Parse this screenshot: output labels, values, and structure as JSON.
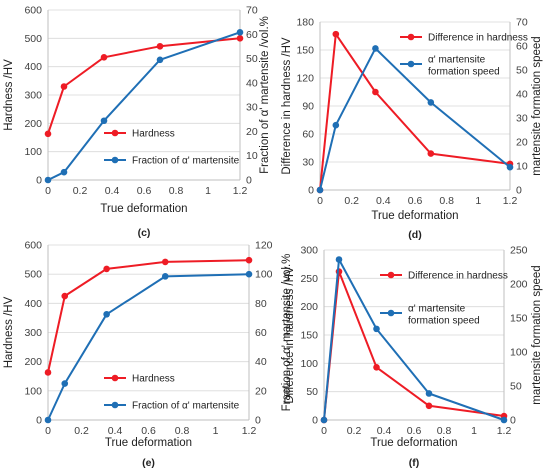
{
  "colors": {
    "hardness": "#ee1c25",
    "martensite": "#1f6fb5",
    "axis": "#bfbfbf",
    "grid": "#d9d9d9"
  },
  "chart_data": [
    {
      "panel": "(c)",
      "type": "line",
      "xlabel": "True deformation",
      "ylabel": "Hardness /HV",
      "y2label": "Fraction of α' martensite /vol.%",
      "xlim": [
        0,
        1.2
      ],
      "ylim": [
        0,
        600
      ],
      "y2lim": [
        0,
        70
      ],
      "xticks": [
        "0",
        "0.2",
        "0.4",
        "0.6",
        "0.8",
        "1",
        "1.2"
      ],
      "yticks": [
        "0",
        "100",
        "200",
        "300",
        "400",
        "500",
        "600"
      ],
      "y2ticks": [
        "0",
        "10",
        "20",
        "30",
        "40",
        "50",
        "60",
        "70"
      ],
      "legend_position": "bottom-right",
      "series": [
        {
          "name": "Hardness",
          "axis": "left",
          "color": "#ee1c25",
          "x": [
            0,
            0.1,
            0.35,
            0.7,
            1.2
          ],
          "y": [
            163,
            330,
            433,
            472,
            500
          ]
        },
        {
          "name": "Fraction of α' martensite",
          "axis": "right",
          "color": "#1f6fb5",
          "x": [
            0,
            0.1,
            0.35,
            0.7,
            1.2
          ],
          "y": [
            0,
            3.2,
            24.4,
            49.5,
            60.8
          ]
        }
      ]
    },
    {
      "panel": "(d)",
      "type": "line",
      "xlabel": "True deformation",
      "ylabel": "Difference in hardness /HV",
      "y2label": "martensite formation speed",
      "xlim": [
        0,
        1.2
      ],
      "ylim": [
        0,
        180
      ],
      "y2lim": [
        0,
        70
      ],
      "xticks": [
        "0",
        "0.2",
        "0.4",
        "0.6",
        "0.8",
        "1",
        "1.2"
      ],
      "yticks": [
        "0",
        "30",
        "60",
        "90",
        "120",
        "150",
        "180"
      ],
      "y2ticks": [
        "0",
        "10",
        "20",
        "30",
        "40",
        "50",
        "60",
        "70"
      ],
      "legend_position": "top-right",
      "series": [
        {
          "name": "Difference in hardness",
          "axis": "left",
          "color": "#ee1c25",
          "x": [
            0,
            0.1,
            0.35,
            0.7,
            1.2
          ],
          "y": [
            0,
            167,
            105,
            39,
            28
          ]
        },
        {
          "name": "α' martensite formation speed",
          "axis": "right",
          "color": "#1f6fb5",
          "x": [
            0,
            0.1,
            0.35,
            0.7,
            1.2
          ],
          "y": [
            0,
            27,
            59,
            36.5,
            9.5
          ]
        }
      ]
    },
    {
      "panel": "(e)",
      "type": "line",
      "xlabel": "True deformation",
      "ylabel": "Hardness /HV",
      "y2label": "Fraction of α' martensite /vol.%",
      "xlim": [
        0,
        1.2
      ],
      "ylim": [
        0,
        600
      ],
      "y2lim": [
        0,
        120
      ],
      "xticks": [
        "0",
        "0.2",
        "0.4",
        "0.6",
        "0.8",
        "1",
        "1.2"
      ],
      "yticks": [
        "0",
        "100",
        "200",
        "300",
        "400",
        "500",
        "600"
      ],
      "y2ticks": [
        "0",
        "20",
        "40",
        "60",
        "80",
        "100",
        "120"
      ],
      "legend_position": "bottom-right",
      "series": [
        {
          "name": "Hardness",
          "axis": "left",
          "color": "#ee1c25",
          "x": [
            0,
            0.1,
            0.35,
            0.7,
            1.2
          ],
          "y": [
            163,
            425,
            518,
            542,
            548
          ]
        },
        {
          "name": "Fraction of α' martensite",
          "axis": "right",
          "color": "#1f6fb5",
          "x": [
            0,
            0.1,
            0.35,
            0.7,
            1.2
          ],
          "y": [
            0,
            25,
            72.5,
            98.5,
            100
          ]
        }
      ]
    },
    {
      "panel": "(f)",
      "type": "line",
      "xlabel": "True deformation",
      "ylabel": "Difference in hardness /HV",
      "y2label": "martensite formation speed",
      "xlim": [
        0,
        1.2
      ],
      "ylim": [
        0,
        300
      ],
      "y2lim": [
        0,
        250
      ],
      "xticks": [
        "0",
        "0.2",
        "0.4",
        "0.6",
        "0.8",
        "1",
        "1.2"
      ],
      "yticks": [
        "0",
        "50",
        "100",
        "150",
        "200",
        "250",
        "300"
      ],
      "y2ticks": [
        "0",
        "50",
        "100",
        "150",
        "200",
        "250"
      ],
      "legend_position": "top-right",
      "series": [
        {
          "name": "Difference in hardness",
          "axis": "left",
          "color": "#ee1c25",
          "x": [
            0,
            0.1,
            0.35,
            0.7,
            1.2
          ],
          "y": [
            0,
            262,
            93,
            25,
            7
          ]
        },
        {
          "name": "α' martensite formation speed",
          "axis": "right",
          "color": "#1f6fb5",
          "x": [
            0,
            0.1,
            0.35,
            0.7,
            1.2
          ],
          "y": [
            0,
            236,
            134,
            39,
            0
          ]
        }
      ]
    }
  ]
}
